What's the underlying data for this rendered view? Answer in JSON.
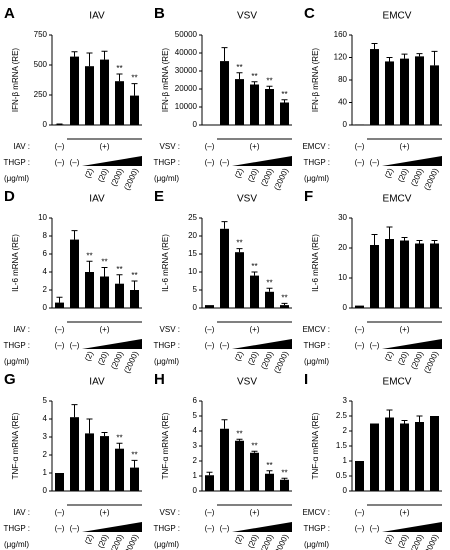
{
  "chart_data": [
    {
      "type": "bar",
      "panel": "A",
      "title": "IAV",
      "y_label": "IFN-β mRNA (RE)",
      "stimulus_label": "IAV :",
      "stimulus_levels": [
        "(–)",
        "(+)"
      ],
      "treatment_label": "THGP :",
      "unit_label": "(μg/ml)",
      "categories": [
        "(–)",
        "(–)",
        "(2)",
        "(20)",
        "(200)",
        "(2000)"
      ],
      "values": [
        5,
        570,
        490,
        545,
        365,
        245
      ],
      "errors": [
        3,
        40,
        110,
        70,
        60,
        100
      ],
      "annotations": [
        null,
        null,
        null,
        null,
        "**",
        "**"
      ],
      "color": "#000000",
      "ylim": [
        0,
        750
      ],
      "yticks": [
        0,
        250,
        500,
        750
      ]
    },
    {
      "type": "bar",
      "panel": "B",
      "title": "VSV",
      "y_label": "IFN-β mRNA (RE)",
      "stimulus_label": "VSV :",
      "stimulus_levels": [
        "(–)",
        "(+)"
      ],
      "treatment_label": "THGP :",
      "unit_label": "(μg/ml)",
      "categories": [
        "(–)",
        "(–)",
        "(2)",
        "(20)",
        "(200)",
        "(2000)"
      ],
      "values": [
        200,
        35500,
        25500,
        22500,
        20000,
        12500
      ],
      "errors": [
        null,
        7500,
        3500,
        1500,
        1500,
        1500
      ],
      "annotations": [
        null,
        null,
        "**",
        "**",
        "**",
        "**"
      ],
      "color": "#000000",
      "ylim": [
        0,
        50000
      ],
      "yticks": [
        0,
        10000,
        20000,
        30000,
        40000,
        50000
      ]
    },
    {
      "type": "bar",
      "panel": "C",
      "title": "EMCV",
      "y_label": "IFN-β mRNA (RE)",
      "stimulus_label": "EMCV :",
      "stimulus_levels": [
        "(–)",
        "(+)"
      ],
      "treatment_label": "THGP :",
      "unit_label": "(μg/ml)",
      "categories": [
        "(–)",
        "(–)",
        "(2)",
        "(20)",
        "(200)",
        "(2000)"
      ],
      "values": [
        1,
        135,
        113,
        118,
        122,
        106
      ],
      "errors": [
        null,
        10,
        7,
        8,
        5,
        25
      ],
      "annotations": [
        null,
        null,
        null,
        null,
        null,
        null
      ],
      "color": "#000000",
      "ylim": [
        0,
        160
      ],
      "yticks": [
        0,
        40,
        80,
        120,
        160
      ]
    },
    {
      "type": "bar",
      "panel": "D",
      "title": "IAV",
      "y_label": "IL-6 mRNA (RE)",
      "stimulus_label": "IAV :",
      "stimulus_levels": [
        "(–)",
        "(+)"
      ],
      "treatment_label": "THGP :",
      "unit_label": "(μg/ml)",
      "categories": [
        "(–)",
        "(–)",
        "(2)",
        "(20)",
        "(200)",
        "(2000)"
      ],
      "values": [
        0.6,
        7.6,
        4.0,
        3.5,
        2.7,
        2.0
      ],
      "errors": [
        0.6,
        1.0,
        1.2,
        1.0,
        1.0,
        1.0
      ],
      "annotations": [
        null,
        null,
        "**",
        "**",
        "**",
        "**"
      ],
      "color": "#000000",
      "ylim": [
        0,
        10
      ],
      "yticks": [
        0,
        2,
        4,
        6,
        8,
        10
      ]
    },
    {
      "type": "bar",
      "panel": "E",
      "title": "VSV",
      "y_label": "IL-6 mRNA (RE)",
      "stimulus_label": "VSV :",
      "stimulus_levels": [
        "(–)",
        "(+)"
      ],
      "treatment_label": "THGP :",
      "unit_label": "(μg/ml)",
      "categories": [
        "(–)",
        "(–)",
        "(2)",
        "(20)",
        "(200)",
        "(2000)"
      ],
      "values": [
        0.8,
        22,
        15.5,
        9,
        4.5,
        0.8
      ],
      "errors": [
        null,
        2,
        1,
        1,
        1,
        0.5
      ],
      "annotations": [
        null,
        null,
        "**",
        "**",
        "**",
        "**"
      ],
      "color": "#000000",
      "ylim": [
        0,
        25
      ],
      "yticks": [
        0,
        5,
        10,
        15,
        20,
        25
      ]
    },
    {
      "type": "bar",
      "panel": "F",
      "title": "EMCV",
      "y_label": "IL-6 mRNA (RE)",
      "stimulus_label": "EMCV :",
      "stimulus_levels": [
        "(–)",
        "(+)"
      ],
      "treatment_label": "THGP :",
      "unit_label": "(μg/ml)",
      "categories": [
        "(–)",
        "(–)",
        "(2)",
        "(20)",
        "(200)",
        "(2000)"
      ],
      "values": [
        0.8,
        21,
        23,
        22.5,
        21.5,
        21.5
      ],
      "errors": [
        null,
        3.5,
        4,
        1,
        1,
        1
      ],
      "annotations": [
        null,
        null,
        null,
        null,
        null,
        null
      ],
      "color": "#000000",
      "ylim": [
        0,
        30
      ],
      "yticks": [
        0,
        10,
        20,
        30
      ]
    },
    {
      "type": "bar",
      "panel": "G",
      "title": "IAV",
      "y_label": "TNF-α mRNA (RE)",
      "stimulus_label": "IAV :",
      "stimulus_levels": [
        "(–)",
        "(+)"
      ],
      "treatment_label": "THGP :",
      "unit_label": "(μg/ml)",
      "categories": [
        "(–)",
        "(–)",
        "(2)",
        "(20)",
        "(200)",
        "(2000)"
      ],
      "values": [
        1.0,
        4.1,
        3.2,
        3.05,
        2.35,
        1.3
      ],
      "errors": [
        null,
        0.7,
        0.8,
        0.2,
        0.3,
        0.4
      ],
      "annotations": [
        null,
        null,
        null,
        null,
        "**",
        "**"
      ],
      "color": "#000000",
      "ylim": [
        0,
        5
      ],
      "yticks": [
        0,
        1,
        2,
        3,
        4,
        5
      ]
    },
    {
      "type": "bar",
      "panel": "H",
      "title": "VSV",
      "y_label": "TNF-α mRNA (RE)",
      "stimulus_label": "VSV :",
      "stimulus_levels": [
        "(–)",
        "(+)"
      ],
      "treatment_label": "THGP :",
      "unit_label": "(μg/ml)",
      "categories": [
        "(–)",
        "(–)",
        "(2)",
        "(20)",
        "(200)",
        "(2000)"
      ],
      "values": [
        1.05,
        4.15,
        3.35,
        2.55,
        1.15,
        0.75
      ],
      "errors": [
        0.2,
        0.6,
        0.1,
        0.1,
        0.2,
        0.1
      ],
      "annotations": [
        null,
        null,
        "**",
        "**",
        "**",
        "**"
      ],
      "color": "#000000",
      "ylim": [
        0,
        6
      ],
      "yticks": [
        0,
        1,
        2,
        3,
        4,
        5,
        6
      ]
    },
    {
      "type": "bar",
      "panel": "I",
      "title": "EMCV",
      "y_label": "TNF-α mRNA (RE)",
      "stimulus_label": "EMCV :",
      "stimulus_levels": [
        "(–)",
        "(+)"
      ],
      "treatment_label": "THGP :",
      "unit_label": "(μg/ml)",
      "categories": [
        "(–)",
        "(–)",
        "(2)",
        "(20)",
        "(200)",
        "(2000)"
      ],
      "values": [
        1.0,
        2.25,
        2.45,
        2.25,
        2.3,
        2.5
      ],
      "errors": [
        null,
        null,
        0.25,
        0.1,
        0.2,
        null
      ],
      "annotations": [
        null,
        null,
        null,
        null,
        null,
        null
      ],
      "color": "#000000",
      "ylim": [
        0,
        3
      ],
      "yticks": [
        0,
        0.5,
        1,
        1.5,
        2,
        2.5,
        3
      ]
    }
  ]
}
